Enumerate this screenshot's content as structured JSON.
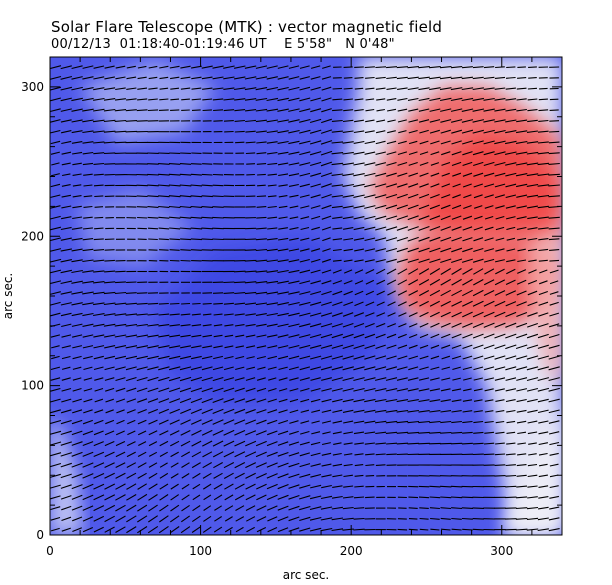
{
  "header": {
    "title": "Solar Flare Telescope (MTK) : vector magnetic field",
    "date": "00/12/13",
    "time_range": "01:18:40-01:19:46 UT",
    "position_ew": "E 5'58\"",
    "position_ns": "N 0'48\""
  },
  "chart_data": {
    "type": "heatmap",
    "title": "Solar Flare Telescope (MTK) : vector magnetic field",
    "xlabel": "arc sec.",
    "ylabel": "arc sec.",
    "xlim": [
      0,
      340
    ],
    "ylim": [
      0,
      320
    ],
    "xticks": [
      0,
      100,
      200,
      300
    ],
    "yticks": [
      0,
      100,
      200,
      300
    ],
    "xtick_labels": [
      "0",
      "100",
      "200",
      "300"
    ],
    "ytick_labels": [
      "0",
      "100",
      "200",
      "300"
    ],
    "colors": {
      "negative_polarity": "#4f59ea",
      "positive_polarity": "#f04a4a",
      "neutral": "#f2f2f8",
      "vectors": "#000000"
    },
    "regions": [
      {
        "name": "negative-polarity-blue",
        "polarity": "negative",
        "x_range": [
          0,
          340
        ],
        "y_range": [
          0,
          320
        ]
      },
      {
        "name": "positive-polarity-red-upper",
        "polarity": "positive",
        "x_range": [
          190,
          340
        ],
        "y_range": [
          195,
          305
        ]
      },
      {
        "name": "positive-polarity-red-lower",
        "polarity": "positive",
        "x_range": [
          225,
          335
        ],
        "y_range": [
          140,
          200
        ]
      }
    ],
    "vector_grid": {
      "dx": 7.2,
      "dy": 7.2,
      "typical_angle_deg": 195
    }
  }
}
